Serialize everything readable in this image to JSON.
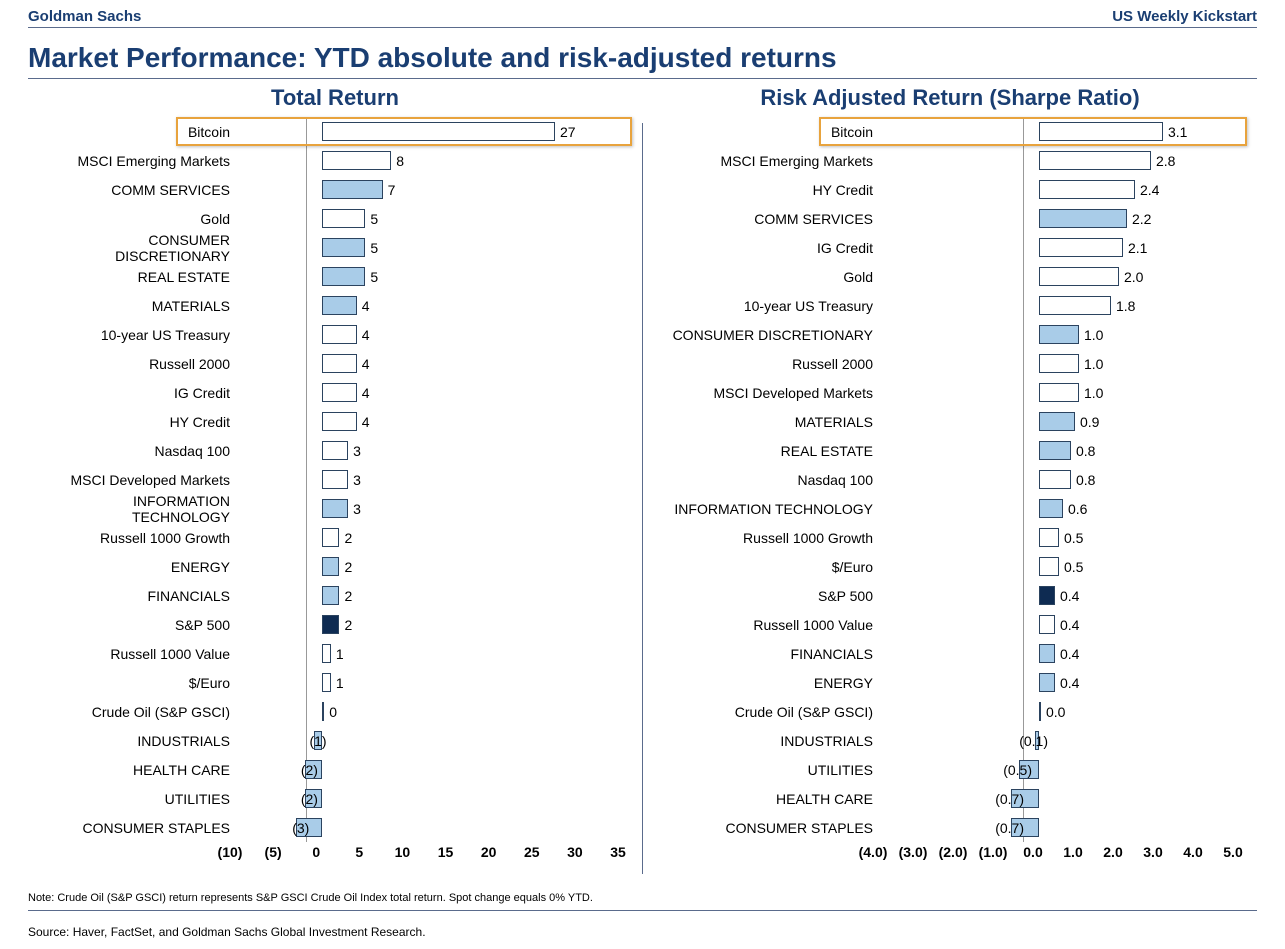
{
  "header": {
    "left": "Goldman Sachs",
    "right": "US Weekly Kickstart"
  },
  "title": "Market Performance: YTD absolute and risk-adjusted returns",
  "footnote": "Note: Crude Oil (S&P GSCI) return represents S&P GSCI Crude Oil Index total return. Spot change equals 0% YTD.",
  "source": "Source: Haver, FactSet, and Goldman Sachs Global Investment Research.",
  "colors": {
    "white": "#ffffff",
    "light_blue": "#a9cce8",
    "dark_navy": "#0e2b52",
    "border": "#2b435f",
    "title": "#1a3e72",
    "highlight": "#e8a33d"
  },
  "left_chart": {
    "title": "Total Return",
    "type": "bar-horizontal",
    "label_width": 192,
    "axis_min": -10,
    "axis_max": 35,
    "ticks": [
      -10,
      -5,
      0,
      5,
      10,
      15,
      20,
      25,
      30,
      35
    ],
    "tick_fmt": "paren_int",
    "value_fmt": "paren_int",
    "highlight_row_index": 0,
    "rows": [
      {
        "label": "Bitcoin",
        "value": 27,
        "fill": "white"
      },
      {
        "label": "MSCI Emerging Markets",
        "value": 8,
        "fill": "white"
      },
      {
        "label": "COMM SERVICES",
        "value": 7,
        "fill": "light_blue"
      },
      {
        "label": "Gold",
        "value": 5,
        "fill": "white"
      },
      {
        "label": "CONSUMER DISCRETIONARY",
        "value": 5,
        "fill": "light_blue"
      },
      {
        "label": "REAL ESTATE",
        "value": 5,
        "fill": "light_blue"
      },
      {
        "label": "MATERIALS",
        "value": 4,
        "fill": "light_blue"
      },
      {
        "label": "10-year US Treasury",
        "value": 4,
        "fill": "white"
      },
      {
        "label": "Russell 2000",
        "value": 4,
        "fill": "white"
      },
      {
        "label": "IG Credit",
        "value": 4,
        "fill": "white"
      },
      {
        "label": "HY Credit",
        "value": 4,
        "fill": "white"
      },
      {
        "label": "Nasdaq 100",
        "value": 3,
        "fill": "white"
      },
      {
        "label": "MSCI Developed Markets",
        "value": 3,
        "fill": "white"
      },
      {
        "label": "INFORMATION TECHNOLOGY",
        "value": 3,
        "fill": "light_blue"
      },
      {
        "label": "Russell 1000 Growth",
        "value": 2,
        "fill": "white"
      },
      {
        "label": "ENERGY",
        "value": 2,
        "fill": "light_blue"
      },
      {
        "label": "FINANCIALS",
        "value": 2,
        "fill": "light_blue"
      },
      {
        "label": "S&P 500",
        "value": 2,
        "fill": "dark_navy"
      },
      {
        "label": "Russell 1000 Value",
        "value": 1,
        "fill": "white"
      },
      {
        "label": "$/Euro",
        "value": 1,
        "fill": "white"
      },
      {
        "label": "Crude Oil (S&P GSCI)",
        "value": 0,
        "fill": "white"
      },
      {
        "label": "INDUSTRIALS",
        "value": -1,
        "fill": "light_blue"
      },
      {
        "label": "HEALTH CARE",
        "value": -2,
        "fill": "light_blue"
      },
      {
        "label": "UTILITIES",
        "value": -2,
        "fill": "light_blue"
      },
      {
        "label": "CONSUMER STAPLES",
        "value": -3,
        "fill": "light_blue"
      }
    ]
  },
  "right_chart": {
    "title": "Risk Adjusted Return (Sharpe Ratio)",
    "type": "bar-horizontal",
    "label_width": 220,
    "axis_min": -4,
    "axis_max": 5,
    "ticks": [
      -4,
      -3,
      -2,
      -1,
      0,
      1,
      2,
      3,
      4,
      5
    ],
    "tick_fmt": "paren_one",
    "value_fmt": "paren_one",
    "highlight_row_index": 0,
    "rows": [
      {
        "label": "Bitcoin",
        "value": 3.1,
        "fill": "white"
      },
      {
        "label": "MSCI Emerging Markets",
        "value": 2.8,
        "fill": "white"
      },
      {
        "label": "HY Credit",
        "value": 2.4,
        "fill": "white"
      },
      {
        "label": "COMM SERVICES",
        "value": 2.2,
        "fill": "light_blue"
      },
      {
        "label": "IG Credit",
        "value": 2.1,
        "fill": "white"
      },
      {
        "label": "Gold",
        "value": 2.0,
        "fill": "white"
      },
      {
        "label": "10-year US Treasury",
        "value": 1.8,
        "fill": "white"
      },
      {
        "label": "CONSUMER DISCRETIONARY",
        "value": 1.0,
        "fill": "light_blue"
      },
      {
        "label": "Russell 2000",
        "value": 1.0,
        "fill": "white"
      },
      {
        "label": "MSCI Developed Markets",
        "value": 1.0,
        "fill": "white"
      },
      {
        "label": "MATERIALS",
        "value": 0.9,
        "fill": "light_blue"
      },
      {
        "label": "REAL ESTATE",
        "value": 0.8,
        "fill": "light_blue"
      },
      {
        "label": "Nasdaq 100",
        "value": 0.8,
        "fill": "white"
      },
      {
        "label": "INFORMATION TECHNOLOGY",
        "value": 0.6,
        "fill": "light_blue"
      },
      {
        "label": "Russell 1000 Growth",
        "value": 0.5,
        "fill": "white"
      },
      {
        "label": "$/Euro",
        "value": 0.5,
        "fill": "white"
      },
      {
        "label": "S&P 500",
        "value": 0.4,
        "fill": "dark_navy"
      },
      {
        "label": "Russell 1000 Value",
        "value": 0.4,
        "fill": "white"
      },
      {
        "label": "FINANCIALS",
        "value": 0.4,
        "fill": "light_blue"
      },
      {
        "label": "ENERGY",
        "value": 0.4,
        "fill": "light_blue"
      },
      {
        "label": "Crude Oil (S&P GSCI)",
        "value": 0.0,
        "fill": "white"
      },
      {
        "label": "INDUSTRIALS",
        "value": -0.1,
        "fill": "light_blue"
      },
      {
        "label": "UTILITIES",
        "value": -0.5,
        "fill": "light_blue"
      },
      {
        "label": "HEALTH CARE",
        "value": -0.7,
        "fill": "light_blue"
      },
      {
        "label": "CONSUMER STAPLES",
        "value": -0.7,
        "fill": "light_blue"
      }
    ]
  }
}
